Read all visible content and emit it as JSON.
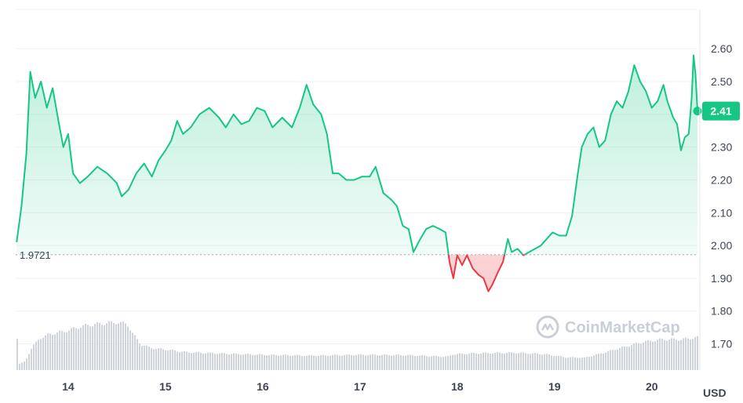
{
  "chart_data": {
    "type": "area",
    "currency_label": "USD",
    "reference_value": 1.9721,
    "reference_label": "1.9721",
    "current_value": 2.41,
    "current_label": "2.41",
    "watermark": "CoinMarketCap",
    "ylim": [
      1.62,
      2.72
    ],
    "y_ticks": [
      {
        "value": 1.7,
        "label": "1.70"
      },
      {
        "value": 1.8,
        "label": "1.80"
      },
      {
        "value": 1.9,
        "label": "1.90"
      },
      {
        "value": 2.0,
        "label": "2.00"
      },
      {
        "value": 2.1,
        "label": "2.10"
      },
      {
        "value": 2.2,
        "label": "2.20"
      },
      {
        "value": 2.3,
        "label": "2.30"
      },
      {
        "value": 2.4,
        "label": "2.40"
      },
      {
        "value": 2.5,
        "label": "2.50"
      },
      {
        "value": 2.6,
        "label": "2.60"
      }
    ],
    "xlim": [
      13.46,
      20.47
    ],
    "x_ticks": [
      {
        "value": 14,
        "label": "14"
      },
      {
        "value": 15,
        "label": "15"
      },
      {
        "value": 16,
        "label": "16"
      },
      {
        "value": 17,
        "label": "17"
      },
      {
        "value": 18,
        "label": "18"
      },
      {
        "value": 19,
        "label": "19"
      },
      {
        "value": 20,
        "label": "20"
      }
    ],
    "price": [
      [
        13.47,
        2.01
      ],
      [
        13.52,
        2.12
      ],
      [
        13.57,
        2.28
      ],
      [
        13.61,
        2.53
      ],
      [
        13.66,
        2.45
      ],
      [
        13.72,
        2.5
      ],
      [
        13.78,
        2.42
      ],
      [
        13.84,
        2.48
      ],
      [
        13.9,
        2.38
      ],
      [
        13.95,
        2.3
      ],
      [
        14.0,
        2.34
      ],
      [
        14.05,
        2.22
      ],
      [
        14.12,
        2.19
      ],
      [
        14.2,
        2.21
      ],
      [
        14.3,
        2.24
      ],
      [
        14.4,
        2.22
      ],
      [
        14.5,
        2.19
      ],
      [
        14.55,
        2.15
      ],
      [
        14.62,
        2.17
      ],
      [
        14.7,
        2.22
      ],
      [
        14.78,
        2.25
      ],
      [
        14.86,
        2.21
      ],
      [
        14.93,
        2.26
      ],
      [
        15.0,
        2.29
      ],
      [
        15.06,
        2.32
      ],
      [
        15.12,
        2.38
      ],
      [
        15.18,
        2.34
      ],
      [
        15.26,
        2.36
      ],
      [
        15.35,
        2.4
      ],
      [
        15.45,
        2.42
      ],
      [
        15.55,
        2.39
      ],
      [
        15.62,
        2.36
      ],
      [
        15.7,
        2.4
      ],
      [
        15.78,
        2.37
      ],
      [
        15.86,
        2.38
      ],
      [
        15.94,
        2.42
      ],
      [
        16.02,
        2.41
      ],
      [
        16.1,
        2.36
      ],
      [
        16.2,
        2.39
      ],
      [
        16.3,
        2.36
      ],
      [
        16.38,
        2.42
      ],
      [
        16.45,
        2.49
      ],
      [
        16.52,
        2.43
      ],
      [
        16.6,
        2.4
      ],
      [
        16.66,
        2.34
      ],
      [
        16.72,
        2.22
      ],
      [
        16.78,
        2.22
      ],
      [
        16.86,
        2.2
      ],
      [
        16.94,
        2.2
      ],
      [
        17.02,
        2.21
      ],
      [
        17.1,
        2.21
      ],
      [
        17.16,
        2.24
      ],
      [
        17.24,
        2.16
      ],
      [
        17.32,
        2.14
      ],
      [
        17.38,
        2.12
      ],
      [
        17.44,
        2.06
      ],
      [
        17.5,
        2.05
      ],
      [
        17.55,
        1.98
      ],
      [
        17.62,
        2.02
      ],
      [
        17.68,
        2.05
      ],
      [
        17.75,
        2.06
      ],
      [
        17.82,
        2.05
      ],
      [
        17.88,
        2.04
      ],
      [
        17.92,
        1.95
      ],
      [
        17.96,
        1.9
      ],
      [
        18.0,
        1.97
      ],
      [
        18.05,
        1.94
      ],
      [
        18.1,
        1.97
      ],
      [
        18.16,
        1.93
      ],
      [
        18.22,
        1.91
      ],
      [
        18.27,
        1.9
      ],
      [
        18.32,
        1.86
      ],
      [
        18.36,
        1.88
      ],
      [
        18.42,
        1.92
      ],
      [
        18.47,
        1.95
      ],
      [
        18.52,
        2.02
      ],
      [
        18.56,
        1.98
      ],
      [
        18.62,
        1.99
      ],
      [
        18.68,
        1.97
      ],
      [
        18.74,
        1.98
      ],
      [
        18.8,
        1.99
      ],
      [
        18.86,
        2.0
      ],
      [
        18.92,
        2.02
      ],
      [
        18.98,
        2.04
      ],
      [
        19.05,
        2.03
      ],
      [
        19.12,
        2.03
      ],
      [
        19.18,
        2.09
      ],
      [
        19.24,
        2.22
      ],
      [
        19.28,
        2.3
      ],
      [
        19.34,
        2.34
      ],
      [
        19.4,
        2.36
      ],
      [
        19.46,
        2.3
      ],
      [
        19.52,
        2.32
      ],
      [
        19.58,
        2.4
      ],
      [
        19.64,
        2.44
      ],
      [
        19.7,
        2.42
      ],
      [
        19.76,
        2.47
      ],
      [
        19.82,
        2.55
      ],
      [
        19.88,
        2.5
      ],
      [
        19.94,
        2.47
      ],
      [
        20.0,
        2.42
      ],
      [
        20.06,
        2.44
      ],
      [
        20.12,
        2.49
      ],
      [
        20.16,
        2.44
      ],
      [
        20.22,
        2.39
      ],
      [
        20.26,
        2.37
      ],
      [
        20.3,
        2.29
      ],
      [
        20.34,
        2.33
      ],
      [
        20.38,
        2.34
      ],
      [
        20.41,
        2.45
      ],
      [
        20.43,
        2.58
      ],
      [
        20.45,
        2.52
      ],
      [
        20.47,
        2.41
      ]
    ],
    "volume": [
      [
        13.47,
        0.1
      ],
      [
        13.55,
        0.17
      ],
      [
        13.62,
        0.45
      ],
      [
        13.7,
        0.62
      ],
      [
        13.8,
        0.7
      ],
      [
        13.9,
        0.74
      ],
      [
        14.0,
        0.78
      ],
      [
        14.1,
        0.84
      ],
      [
        14.2,
        0.88
      ],
      [
        14.3,
        0.9
      ],
      [
        14.4,
        0.92
      ],
      [
        14.5,
        0.93
      ],
      [
        14.6,
        0.9
      ],
      [
        14.66,
        0.7
      ],
      [
        14.74,
        0.5
      ],
      [
        14.85,
        0.43
      ],
      [
        15.0,
        0.4
      ],
      [
        15.2,
        0.35
      ],
      [
        15.5,
        0.33
      ],
      [
        15.8,
        0.31
      ],
      [
        16.0,
        0.3
      ],
      [
        16.5,
        0.28
      ],
      [
        17.0,
        0.3
      ],
      [
        17.5,
        0.29
      ],
      [
        17.9,
        0.26
      ],
      [
        17.95,
        0.31
      ],
      [
        18.2,
        0.33
      ],
      [
        18.6,
        0.34
      ],
      [
        18.9,
        0.31
      ],
      [
        19.1,
        0.25
      ],
      [
        19.3,
        0.24
      ],
      [
        19.5,
        0.34
      ],
      [
        19.7,
        0.45
      ],
      [
        19.9,
        0.55
      ],
      [
        20.1,
        0.6
      ],
      [
        20.3,
        0.6
      ],
      [
        20.47,
        0.64
      ]
    ]
  }
}
